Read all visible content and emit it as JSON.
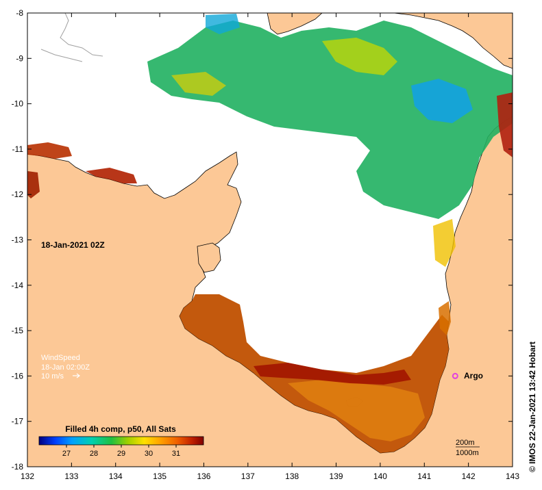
{
  "map": {
    "timestamp": "18-Jan-2021 02Z",
    "credit": "© IMOS 22-Jan-2021 13:42 Hobart",
    "colors": {
      "land": "#fcc896",
      "nodata": "#ffffff",
      "coast": "#000000",
      "isobath": "#a0a0a0",
      "argo": "#e040e0"
    },
    "axes": {
      "longitude_ticks": [
        "132",
        "133",
        "134",
        "135",
        "136",
        "137",
        "138",
        "139",
        "140",
        "141",
        "142",
        "143"
      ],
      "latitude_ticks": [
        "-8",
        "-9",
        "-10",
        "-11",
        "-12",
        "-13",
        "-14",
        "-15",
        "-16",
        "-17",
        "-18"
      ],
      "lon_range": [
        132,
        143
      ],
      "lat_range": [
        -18,
        -8
      ]
    },
    "wind": {
      "title": "WindSpeed",
      "time": "18-Jan 02:00Z",
      "scale": "10 m/s"
    },
    "colorbar": {
      "title": "Filled 4h comp, p50, All Sats",
      "tick_labels": [
        "27",
        "28",
        "29",
        "30",
        "31"
      ],
      "range": [
        26,
        32
      ],
      "colors": [
        "#000080",
        "#0040ff",
        "#00a0ff",
        "#00d0b0",
        "#20c040",
        "#a0d000",
        "#ffe000",
        "#ffa000",
        "#f06000",
        "#c02000",
        "#800000"
      ]
    },
    "argo": {
      "label": "Argo",
      "lon": 141.7,
      "lat": -16.0
    },
    "isobath_legend": {
      "first": "200m",
      "second": "1000m"
    }
  }
}
